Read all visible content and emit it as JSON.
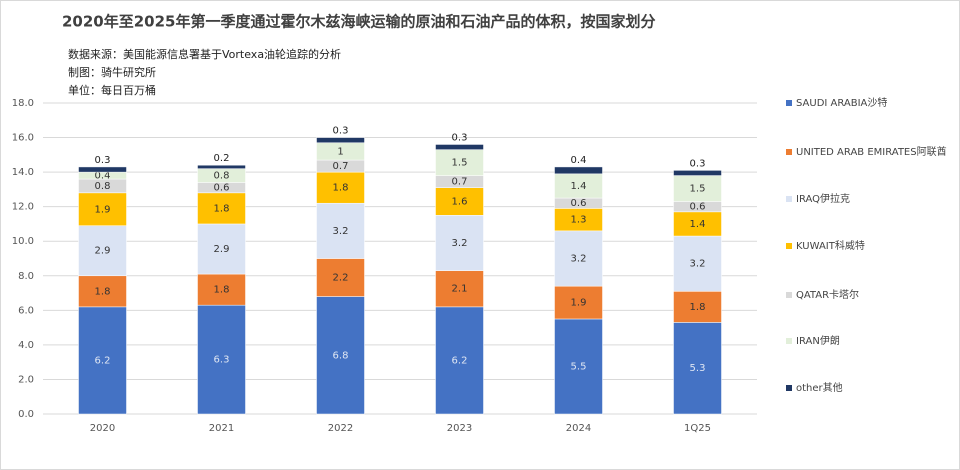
{
  "chart_data": {
    "type": "stacked-bar",
    "title": "2020年至2025年第一季度通过霍尔木兹海峡运输的原油和石油产品的体积，按国家划分",
    "subtitle": [
      "数据来源：美国能源信息署基于Vortexa油轮追踪的分析",
      "制图：骑牛研究所",
      "单位：每日百万桶"
    ],
    "categories": [
      "2020",
      "2021",
      "2022",
      "2023",
      "2024",
      "1Q25"
    ],
    "series": [
      {
        "name": "SAUDI ARABIA沙特",
        "color": "#4472c4",
        "values": [
          6.2,
          6.3,
          6.8,
          6.2,
          5.5,
          5.3
        ]
      },
      {
        "name": "UNITED ARAB EMIRATES阿联酋",
        "color": "#ed7d31",
        "values": [
          1.8,
          1.8,
          2.2,
          2.1,
          1.9,
          1.8
        ]
      },
      {
        "name": "IRAQ伊拉克",
        "color": "#dae3f3",
        "values": [
          2.9,
          2.9,
          3.2,
          3.2,
          3.2,
          3.2
        ]
      },
      {
        "name": "KUWAIT科威特",
        "color": "#ffc000",
        "values": [
          1.9,
          1.8,
          1.8,
          1.6,
          1.3,
          1.4
        ]
      },
      {
        "name": "QATAR卡塔尔",
        "color": "#d9d9d9",
        "values": [
          0.8,
          0.6,
          0.7,
          0.7,
          0.6,
          0.6
        ]
      },
      {
        "name": "IRAN伊朗",
        "color": "#e2efda",
        "values": [
          0.4,
          0.8,
          1.0,
          1.5,
          1.4,
          1.5
        ]
      },
      {
        "name": "other其他",
        "color": "#203864",
        "values": [
          0.3,
          0.2,
          0.3,
          0.3,
          0.4,
          0.3
        ]
      }
    ],
    "ylim": [
      0,
      18
    ],
    "yticks": [
      {
        "value": 0,
        "label": "0.0"
      },
      {
        "value": 2,
        "label": "2.0"
      },
      {
        "value": 4,
        "label": "4.0"
      },
      {
        "value": 6,
        "label": "6.0"
      },
      {
        "value": 8,
        "label": "8.0"
      },
      {
        "value": 10,
        "label": "10.0"
      },
      {
        "value": 12,
        "label": "12.0"
      },
      {
        "value": 14,
        "label": "14.0"
      },
      {
        "value": 16,
        "label": "16.0"
      },
      {
        "value": 18,
        "label": "18.0"
      }
    ],
    "grid": true,
    "legend": "right"
  }
}
